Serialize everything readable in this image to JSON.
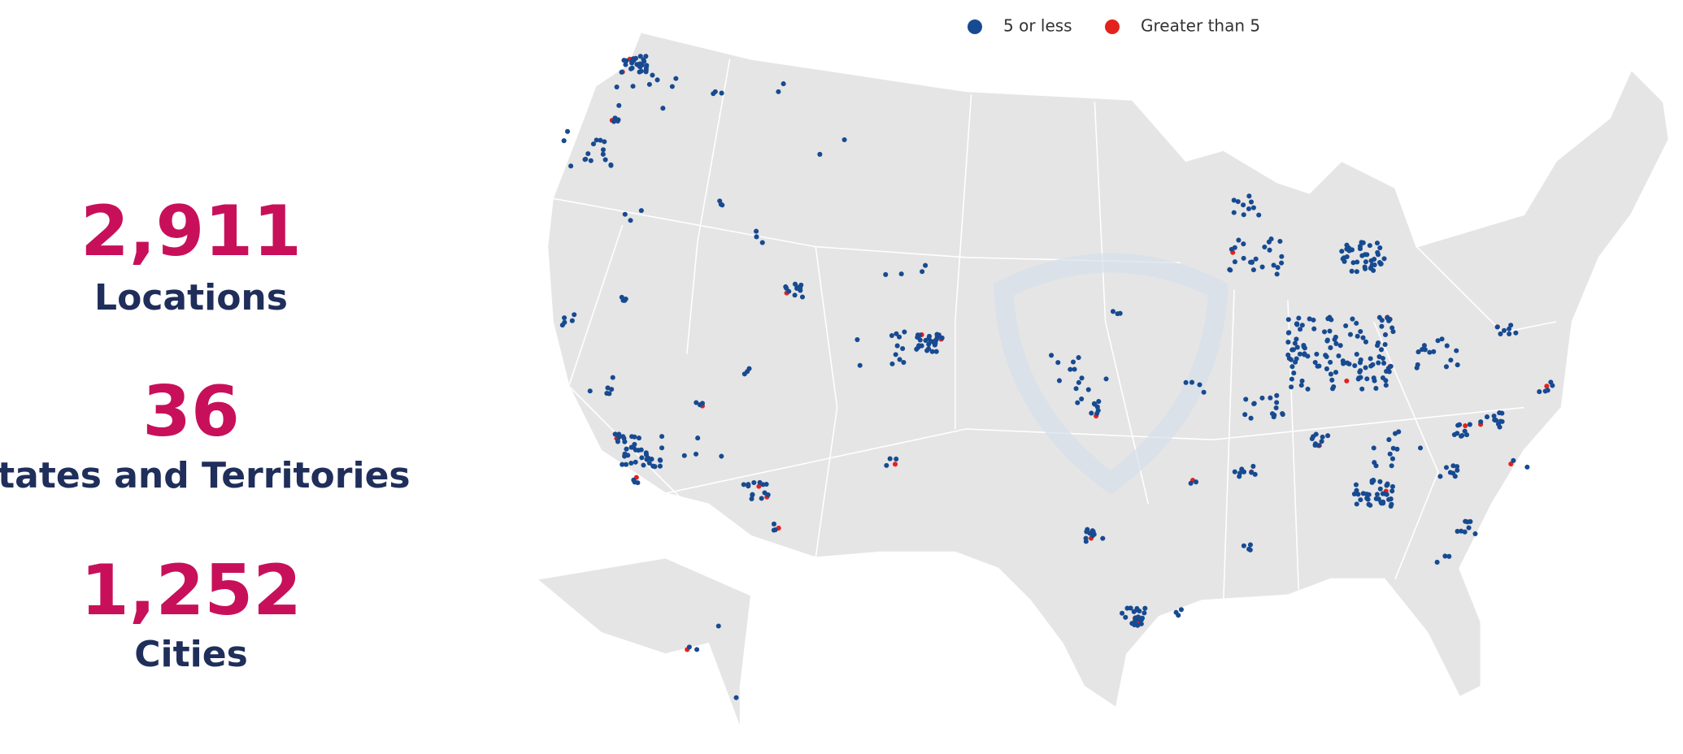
{
  "stats": [
    {
      "value": "2,911",
      "label": "Locations"
    },
    {
      "value": "36",
      "label": "States and Territories"
    },
    {
      "value": "1,252",
      "label": "Cities"
    }
  ],
  "legend": [
    {
      "label": "5 or less",
      "color": "#174a91"
    },
    {
      "label": "Greater than 5",
      "color": "#e3211c"
    }
  ]
}
